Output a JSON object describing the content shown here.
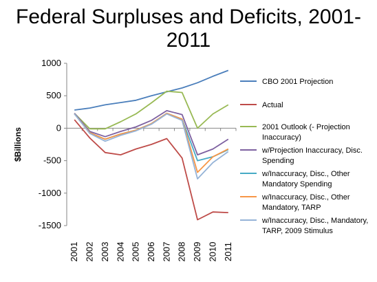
{
  "chart_data": {
    "type": "line",
    "title": "Federal Surpluses and Deficits, 2001-2011",
    "xlabel": "",
    "ylabel": "$Billions",
    "x": [
      "2001",
      "2002",
      "2003",
      "2004",
      "2005",
      "2006",
      "2007",
      "2008",
      "2009",
      "2010",
      "2011"
    ],
    "ylim": [
      -1500,
      1000
    ],
    "yticks": [
      1000,
      500,
      0,
      -500,
      -1000,
      -1500
    ],
    "grid": false,
    "legend_position": "right",
    "series": [
      {
        "name": "CBO 2001 Projection",
        "color": "#4a7ebb",
        "values": [
          280,
          310,
          360,
          395,
          430,
          500,
          560,
          620,
          700,
          800,
          890
        ]
      },
      {
        "name": "Actual",
        "color": "#be4b48",
        "values": [
          130,
          -150,
          -375,
          -410,
          -320,
          -250,
          -160,
          -460,
          -1410,
          -1290,
          -1300
        ]
      },
      {
        "name": "2001 Outlook (- Projection Inaccuracy)",
        "color": "#98b954",
        "values": [
          230,
          -10,
          -10,
          100,
          220,
          390,
          570,
          550,
          0,
          220,
          360
        ]
      },
      {
        "name": "w/Projection Inaccuracy, Disc. Spending",
        "color": "#7d60a0",
        "values": [
          230,
          -50,
          -130,
          -50,
          20,
          120,
          270,
          210,
          -410,
          -320,
          -170
        ]
      },
      {
        "name": "w/Inaccuracy, Disc., Other Mandatory Spending",
        "color": "#46aac5",
        "values": [
          220,
          -70,
          -170,
          -90,
          -30,
          70,
          230,
          140,
          -500,
          -440,
          -330
        ]
      },
      {
        "name": "w/Inaccuracy, Disc., Other Mandatory, TARP",
        "color": "#f79646",
        "values": [
          220,
          -70,
          -170,
          -90,
          -30,
          70,
          230,
          140,
          -680,
          -440,
          -320
        ]
      },
      {
        "name": "w/Inaccuracy, Disc., Mandatory, TARP, 2009 Stimulus",
        "color": "#95b3d7",
        "values": [
          220,
          -80,
          -200,
          -110,
          -40,
          60,
          220,
          120,
          -780,
          -530,
          -360
        ]
      }
    ]
  }
}
